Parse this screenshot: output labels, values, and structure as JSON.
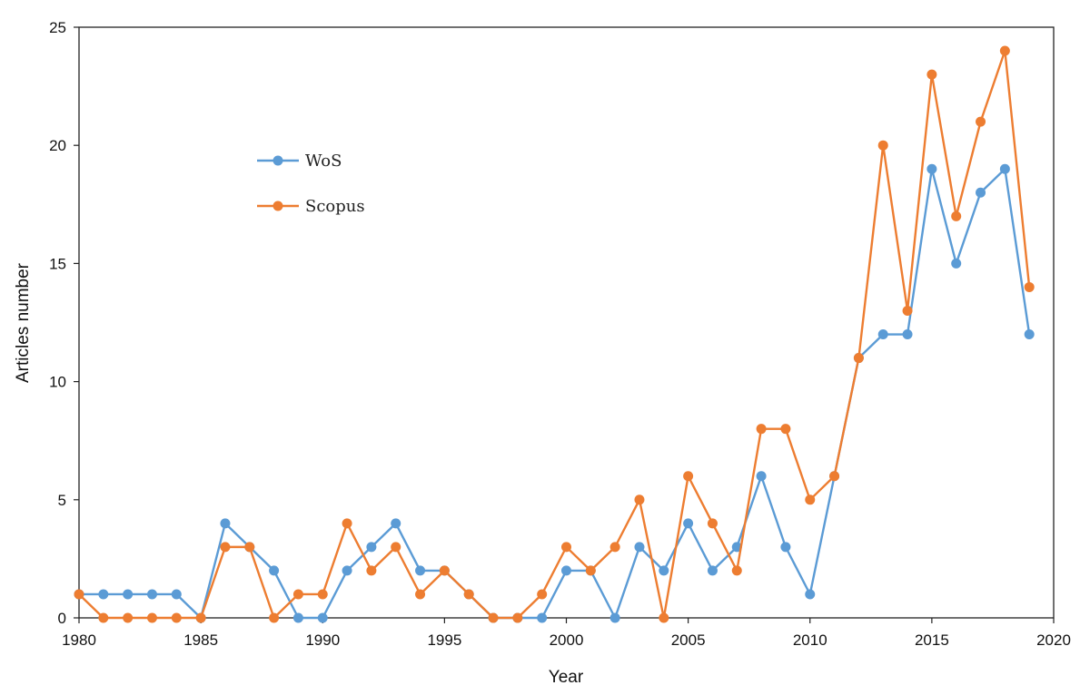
{
  "chart_data": {
    "type": "line",
    "title": "",
    "xlabel": "Year",
    "ylabel": "Articles  number",
    "xlim": [
      1980,
      2020
    ],
    "ylim": [
      0,
      25
    ],
    "x_ticks": [
      "1980",
      "1985",
      "1990",
      "1995",
      "2000",
      "2005",
      "2010",
      "2015",
      "2020"
    ],
    "y_ticks": [
      "0",
      "5",
      "10",
      "15",
      "20",
      "25"
    ],
    "grid": false,
    "legend_position": "upper-left inside plot",
    "x": [
      1980,
      1981,
      1982,
      1983,
      1984,
      1985,
      1986,
      1987,
      1988,
      1989,
      1990,
      1991,
      1992,
      1993,
      1994,
      1995,
      1996,
      1997,
      1998,
      1999,
      2000,
      2001,
      2002,
      2003,
      2004,
      2005,
      2006,
      2007,
      2008,
      2009,
      2010,
      2011,
      2012,
      2013,
      2014,
      2015,
      2016,
      2017,
      2018,
      2019
    ],
    "series": [
      {
        "name": "WoS",
        "color": "#5b9bd5",
        "values": [
          1,
          1,
          1,
          1,
          1,
          0,
          4,
          3,
          2,
          0,
          0,
          2,
          3,
          4,
          2,
          2,
          1,
          0,
          0,
          0,
          2,
          2,
          0,
          3,
          2,
          4,
          2,
          3,
          6,
          3,
          1,
          6,
          11,
          12,
          12,
          19,
          15,
          18,
          19,
          12
        ]
      },
      {
        "name": "Scopus",
        "color": "#ed7d31",
        "values": [
          1,
          0,
          0,
          0,
          0,
          0,
          3,
          3,
          0,
          1,
          1,
          4,
          2,
          3,
          1,
          2,
          1,
          0,
          0,
          1,
          3,
          2,
          3,
          5,
          0,
          6,
          4,
          2,
          8,
          8,
          5,
          6,
          11,
          20,
          13,
          23,
          17,
          21,
          24,
          14
        ]
      }
    ]
  }
}
